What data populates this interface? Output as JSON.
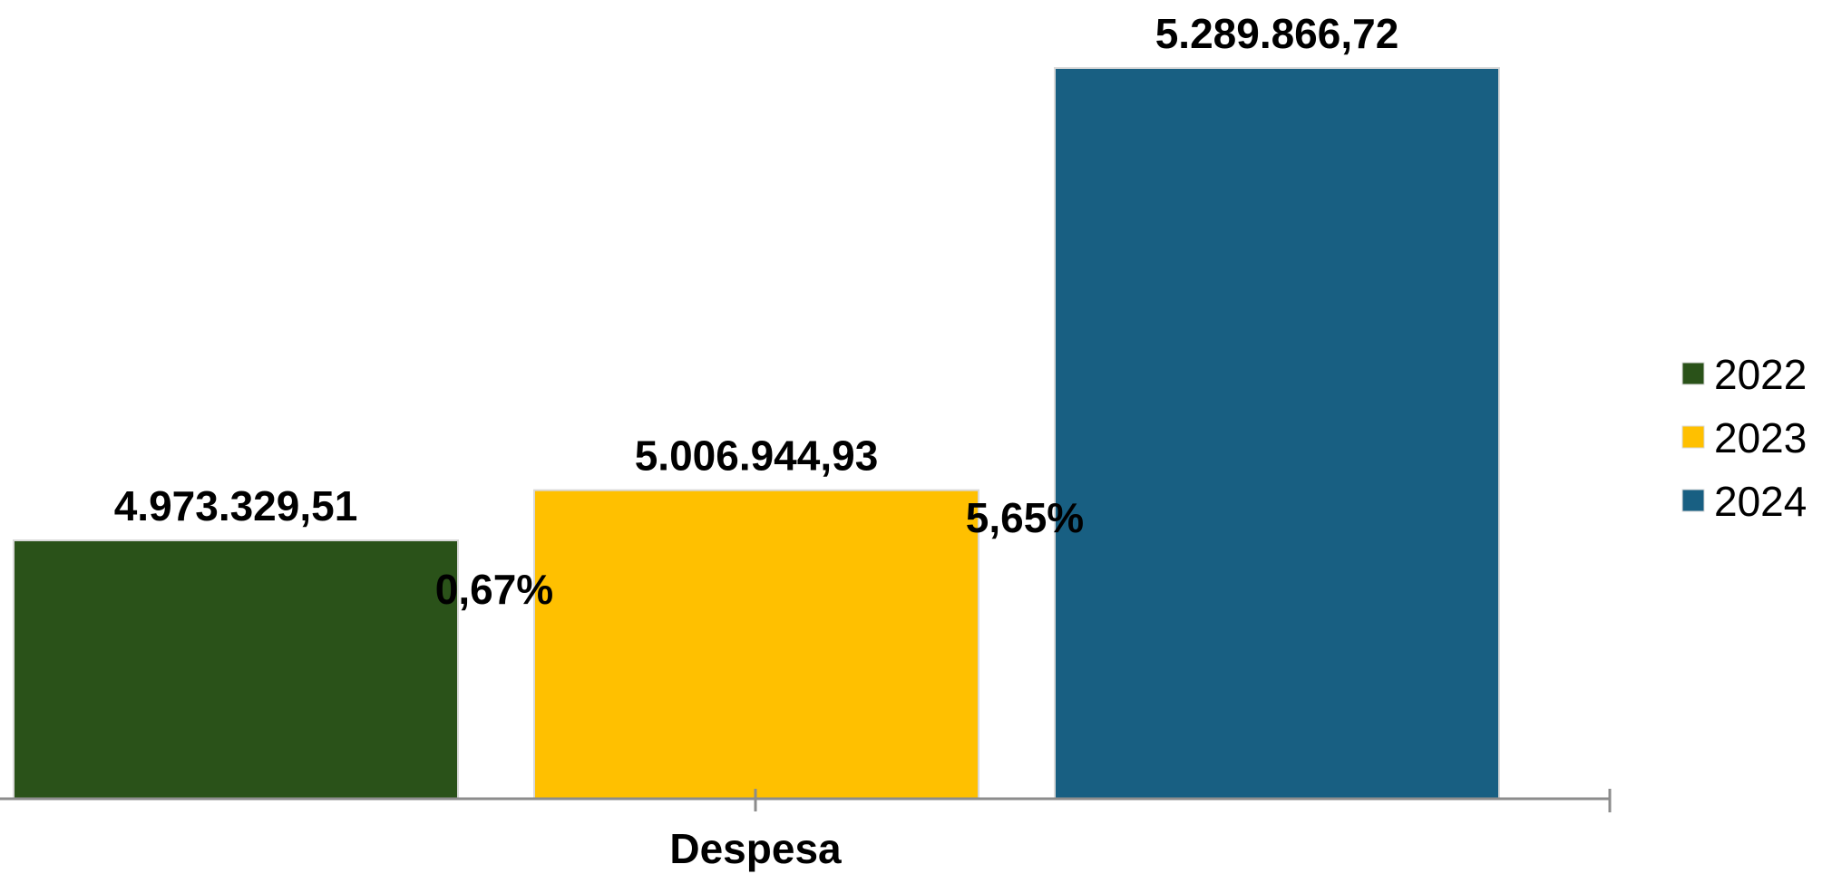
{
  "chart_data": {
    "type": "bar",
    "categories": [
      "Despesa"
    ],
    "series": [
      {
        "name": "2022",
        "values": [
          4973329.51
        ],
        "label": "4.973.329,51",
        "color": "#2A5219"
      },
      {
        "name": "2023",
        "values": [
          5006944.93
        ],
        "label": "5.006.944,93",
        "color": "#FFC000"
      },
      {
        "name": "2024",
        "values": [
          5289866.72
        ],
        "label": "5.289.866,72",
        "color": "#185F82"
      }
    ],
    "growth_labels": [
      "0,67%",
      "5,65%"
    ],
    "title": "",
    "xlabel": "",
    "ylabel": "",
    "ylim": [
      4700000,
      5300000
    ],
    "grid": false,
    "legend_position": "right"
  }
}
